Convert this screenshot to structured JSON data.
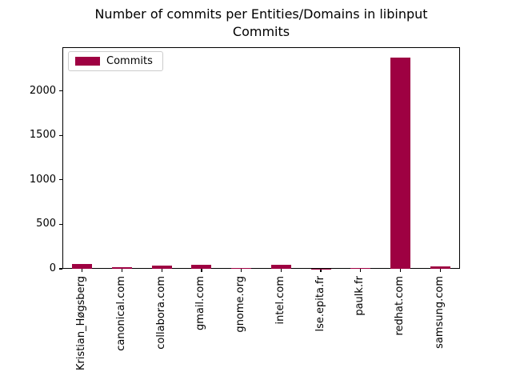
{
  "title": "Number of commits per Entities/Domains in libinput",
  "subtitle": "Commits",
  "legend": {
    "label": "Commits"
  },
  "colors": {
    "bar": "#9e0142",
    "axis": "#000000",
    "legend_border": "#cccccc",
    "background": "#ffffff",
    "text": "#000000"
  },
  "chart_data": {
    "type": "bar",
    "title": "Number of commits per Entities/Domains in libinput",
    "subtitle": "Commits",
    "categories": [
      "Kristian_Høgsberg",
      "canonical.com",
      "collabora.com",
      "gmail.com",
      "gnome.org",
      "intel.com",
      "lse.epita.fr",
      "paulk.fr",
      "redhat.com",
      "samsung.com"
    ],
    "values": [
      55,
      15,
      35,
      45,
      13,
      42,
      3,
      12,
      2370,
      25
    ],
    "series_name": "Commits",
    "xlabel": "",
    "ylabel": "",
    "yticks": [
      0,
      500,
      1000,
      1500,
      2000
    ],
    "ylim": [
      0,
      2490
    ],
    "bar_color": "#9e0142",
    "legend_entries": [
      "Commits"
    ],
    "legend_position": "upper left",
    "grid": false,
    "x_tick_rotation": 90
  }
}
